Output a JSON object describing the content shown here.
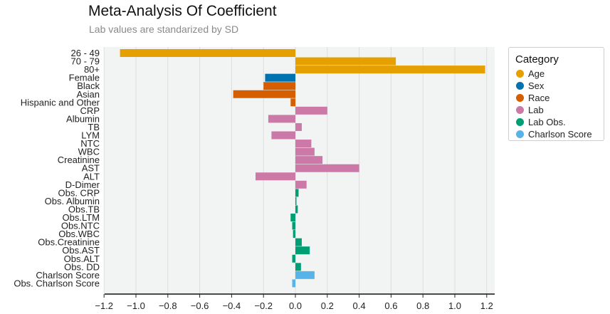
{
  "chart_data": {
    "type": "bar",
    "orientation": "horizontal",
    "title": "Meta-Analysis Of Coefficient",
    "subtitle": "Lab values are standarized by SD",
    "xlabel": "",
    "ylabel": "",
    "xlim": [
      -1.3,
      1.25
    ],
    "xticks": [
      -1.2,
      -1.0,
      -0.8,
      -0.6,
      -0.4,
      -0.2,
      0.0,
      0.2,
      0.4,
      0.6,
      0.8,
      1.0,
      1.2
    ],
    "xtick_labels": [
      "−1.2",
      "−1.0",
      "−0.8",
      "−0.6",
      "−0.4",
      "−0.2",
      "0.0",
      "0.2",
      "0.4",
      "0.6",
      "0.8",
      "1.0",
      "1.2"
    ],
    "grid": "vertical",
    "legend_position": "right",
    "legend_title": "Category",
    "categories_legend": [
      {
        "name": "Age",
        "color": "#E69F00"
      },
      {
        "name": "Sex",
        "color": "#0072B2"
      },
      {
        "name": "Race",
        "color": "#D55E00"
      },
      {
        "name": "Lab",
        "color": "#CC79A7"
      },
      {
        "name": "Lab Obs.",
        "color": "#009E73"
      },
      {
        "name": "Charlson Score",
        "color": "#56B4E9"
      }
    ],
    "bars": [
      {
        "label": "26 - 49",
        "value": -1.1,
        "category": "Age"
      },
      {
        "label": "70 - 79",
        "value": 0.63,
        "category": "Age"
      },
      {
        "label": "80+",
        "value": 1.19,
        "category": "Age"
      },
      {
        "label": "Female",
        "value": -0.19,
        "category": "Sex"
      },
      {
        "label": "Black",
        "value": -0.2,
        "category": "Race"
      },
      {
        "label": "Asian",
        "value": -0.39,
        "category": "Race"
      },
      {
        "label": "Hispanic and Other",
        "value": -0.03,
        "category": "Race"
      },
      {
        "label": "CRP",
        "value": 0.2,
        "category": "Lab"
      },
      {
        "label": "Albumin",
        "value": -0.17,
        "category": "Lab"
      },
      {
        "label": "TB",
        "value": 0.04,
        "category": "Lab"
      },
      {
        "label": "LYM",
        "value": -0.15,
        "category": "Lab"
      },
      {
        "label": "NTC",
        "value": 0.1,
        "category": "Lab"
      },
      {
        "label": "WBC",
        "value": 0.12,
        "category": "Lab"
      },
      {
        "label": "Creatinine",
        "value": 0.17,
        "category": "Lab"
      },
      {
        "label": "AST",
        "value": 0.4,
        "category": "Lab"
      },
      {
        "label": "ALT",
        "value": -0.25,
        "category": "Lab"
      },
      {
        "label": "D-Dimer",
        "value": 0.07,
        "category": "Lab"
      },
      {
        "label": "Obs. CRP",
        "value": 0.02,
        "category": "Lab Obs."
      },
      {
        "label": "Obs. Albumin",
        "value": 0.005,
        "category": "Lab Obs."
      },
      {
        "label": "Obs.TB",
        "value": 0.015,
        "category": "Lab Obs."
      },
      {
        "label": "Obs.LTM",
        "value": -0.03,
        "category": "Lab Obs."
      },
      {
        "label": "Obs.NTC",
        "value": -0.02,
        "category": "Lab Obs."
      },
      {
        "label": "Obs.WBC",
        "value": -0.015,
        "category": "Lab Obs."
      },
      {
        "label": "Obs.Creatinine",
        "value": 0.04,
        "category": "Lab Obs."
      },
      {
        "label": "Obs.AST",
        "value": 0.09,
        "category": "Lab Obs."
      },
      {
        "label": "Obs.ALT",
        "value": -0.02,
        "category": "Lab Obs."
      },
      {
        "label": "Obs. DD",
        "value": 0.035,
        "category": "Lab Obs."
      },
      {
        "label": "Charlson Score",
        "value": 0.12,
        "category": "Charlson Score"
      },
      {
        "label": "Obs. Charlson Score",
        "value": -0.02,
        "category": "Charlson Score"
      }
    ]
  }
}
